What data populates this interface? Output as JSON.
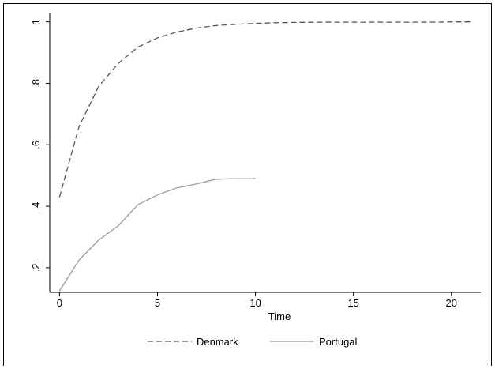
{
  "chart_data": {
    "type": "line",
    "title": "",
    "xlabel": "Time",
    "ylabel": "",
    "xlim": [
      -0.5,
      21.5
    ],
    "ylim": [
      0.12,
      1.03
    ],
    "x_ticks": [
      0,
      5,
      10,
      15,
      20
    ],
    "y_ticks": [
      0.2,
      0.4,
      0.6,
      0.8,
      1.0
    ],
    "x_tick_labels": [
      "0",
      "5",
      "10",
      "15",
      "20"
    ],
    "y_tick_labels": [
      ".2",
      ".4",
      ".6",
      ".8",
      "1"
    ],
    "grid": false,
    "legend_position": "bottom",
    "series": [
      {
        "name": "Denmark",
        "color": "#555555",
        "dash": "dashed",
        "x": [
          0,
          1,
          2,
          3,
          4,
          5,
          6,
          7,
          8,
          9,
          10,
          11,
          12,
          13,
          14,
          15,
          16,
          17,
          18,
          19,
          20,
          21
        ],
        "y": [
          0.43,
          0.66,
          0.79,
          0.865,
          0.918,
          0.948,
          0.967,
          0.98,
          0.988,
          0.992,
          0.995,
          0.997,
          0.998,
          0.999,
          0.999,
          0.999,
          0.999,
          0.999,
          0.999,
          0.999,
          1.0,
          1.0
        ]
      },
      {
        "name": "Portugal",
        "color": "#999999",
        "dash": "solid",
        "x": [
          0,
          1,
          2,
          3,
          4,
          5,
          6,
          7,
          8,
          9,
          10
        ],
        "y": [
          0.125,
          0.225,
          0.29,
          0.337,
          0.405,
          0.437,
          0.46,
          0.473,
          0.488,
          0.49,
          0.49
        ]
      }
    ]
  }
}
